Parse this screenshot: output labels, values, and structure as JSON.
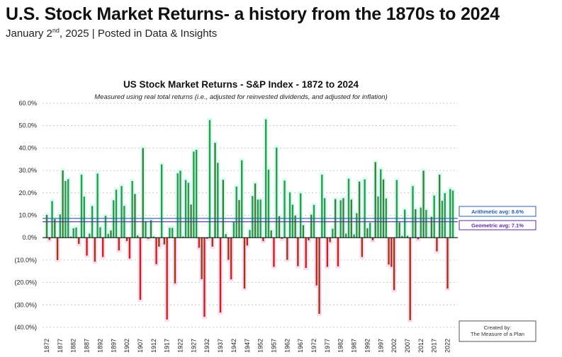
{
  "header": {
    "title": "U.S. Stock Market Returns- a history from the 1870s to 2024",
    "date_prefix": "January 2",
    "date_suffix": "nd",
    "date_rest": ", 2025 | Posted in Data & Insights"
  },
  "chart_data": {
    "type": "bar",
    "title": "US Stock Market Returns - S&P Index - 1872 to 2024",
    "subtitle": "Measured using real total returns (i.e., adjusted for reinvested dividends, and adjusted for inflation)",
    "ylim": [
      -40,
      60
    ],
    "yticks": [
      60,
      50,
      40,
      30,
      20,
      10,
      0,
      -10,
      -20,
      -30,
      -40
    ],
    "ytick_labels": [
      "60.0%",
      "50.0%",
      "40.0%",
      "30.0%",
      "20.0%",
      "10.0%",
      "0.0%",
      "(10.0%)",
      "(20.0%)",
      "(30.0%)",
      "(40.0%)"
    ],
    "xtick_labels": [
      "1872",
      "1877",
      "1882",
      "1887",
      "1892",
      "1897",
      "1902",
      "1907",
      "1912",
      "1917",
      "1922",
      "1927",
      "1932",
      "1937",
      "1942",
      "1947",
      "1952",
      "1957",
      "1962",
      "1967",
      "1972",
      "1977",
      "1982",
      "1987",
      "1992",
      "1997",
      "2002",
      "2007",
      "2012",
      "2017",
      "2022"
    ],
    "grid": true,
    "first_year": 1872,
    "last_year": 2024,
    "values": [
      10.2,
      -1,
      16.3,
      8.3,
      -10,
      10.4,
      30,
      25.3,
      26.1,
      0.5,
      4.2,
      4.5,
      -2.8,
      28.1,
      18.3,
      -8,
      1.8,
      14.1,
      -10.7,
      28.6,
      4.6,
      -8.6,
      9.8,
      1.7,
      3.2,
      16.7,
      21.4,
      -5.7,
      23,
      14.2,
      -1.5,
      -9.3,
      25.3,
      19.5,
      1,
      -27.7,
      40,
      7.4,
      -0.5,
      7.8,
      0.5,
      -11.8,
      -4,
      32.7,
      -3,
      -36.5,
      4.4,
      4.4,
      -20.4,
      28.7,
      29.9,
      0.5,
      25.7,
      24.5,
      14.8,
      38.4,
      39.2,
      -4.5,
      -18.5,
      -35.3,
      -0.5,
      52.5,
      -4,
      42.3,
      33.4,
      -33.4,
      25.8,
      1.6,
      -9.9,
      -18.6,
      7.1,
      22.8,
      16.8,
      34.5,
      -22.7,
      -3.5,
      3.4,
      18.6,
      24.2,
      17,
      17,
      -1.5,
      52.8,
      30.4,
      3.2,
      -13,
      40.2,
      9.6,
      -0.5,
      25.5,
      -9.9,
      20.2,
      14.7,
      9.9,
      -12.7,
      19.8,
      5.6,
      -13.5,
      -1.2,
      10.3,
      14.6,
      -21.3,
      -34,
      28.1,
      17.6,
      -13,
      -2,
      4,
      17.2,
      -12.8,
      16.7,
      17.6,
      1.8,
      26.3,
      17,
      1.5,
      10.9,
      25,
      -8.6,
      26,
      4.2,
      6.6,
      -1.2,
      33.7,
      18.4,
      30.5,
      26,
      17.5,
      -12,
      -13,
      -23.4,
      25.7,
      6.8,
      0.8,
      12.5,
      0.8,
      -36.8,
      23,
      12.7,
      -0.7,
      13.4,
      29.9,
      12.4,
      0.2,
      9.3,
      18.8,
      -6.1,
      28.1,
      16.5,
      19.9,
      -22.7,
      21.7,
      21
    ],
    "reference_lines": [
      {
        "name": "Arithmetic avg",
        "value": 8.6,
        "label": "Arithmetic avg: 8.6%",
        "color": "#2a5caa"
      },
      {
        "name": "Geometric avg",
        "value": 7.1,
        "label": "Geometric avg: 7.1%",
        "color": "#5a2a9a"
      }
    ],
    "colors": {
      "positive": "#2f9a4c",
      "negative": "#c0281c",
      "positive_band": "#d8fbf3",
      "negative_band": "#fbdcf3"
    },
    "credit_line1": "Created by:",
    "credit_line2": "The Measure of a Plan"
  }
}
